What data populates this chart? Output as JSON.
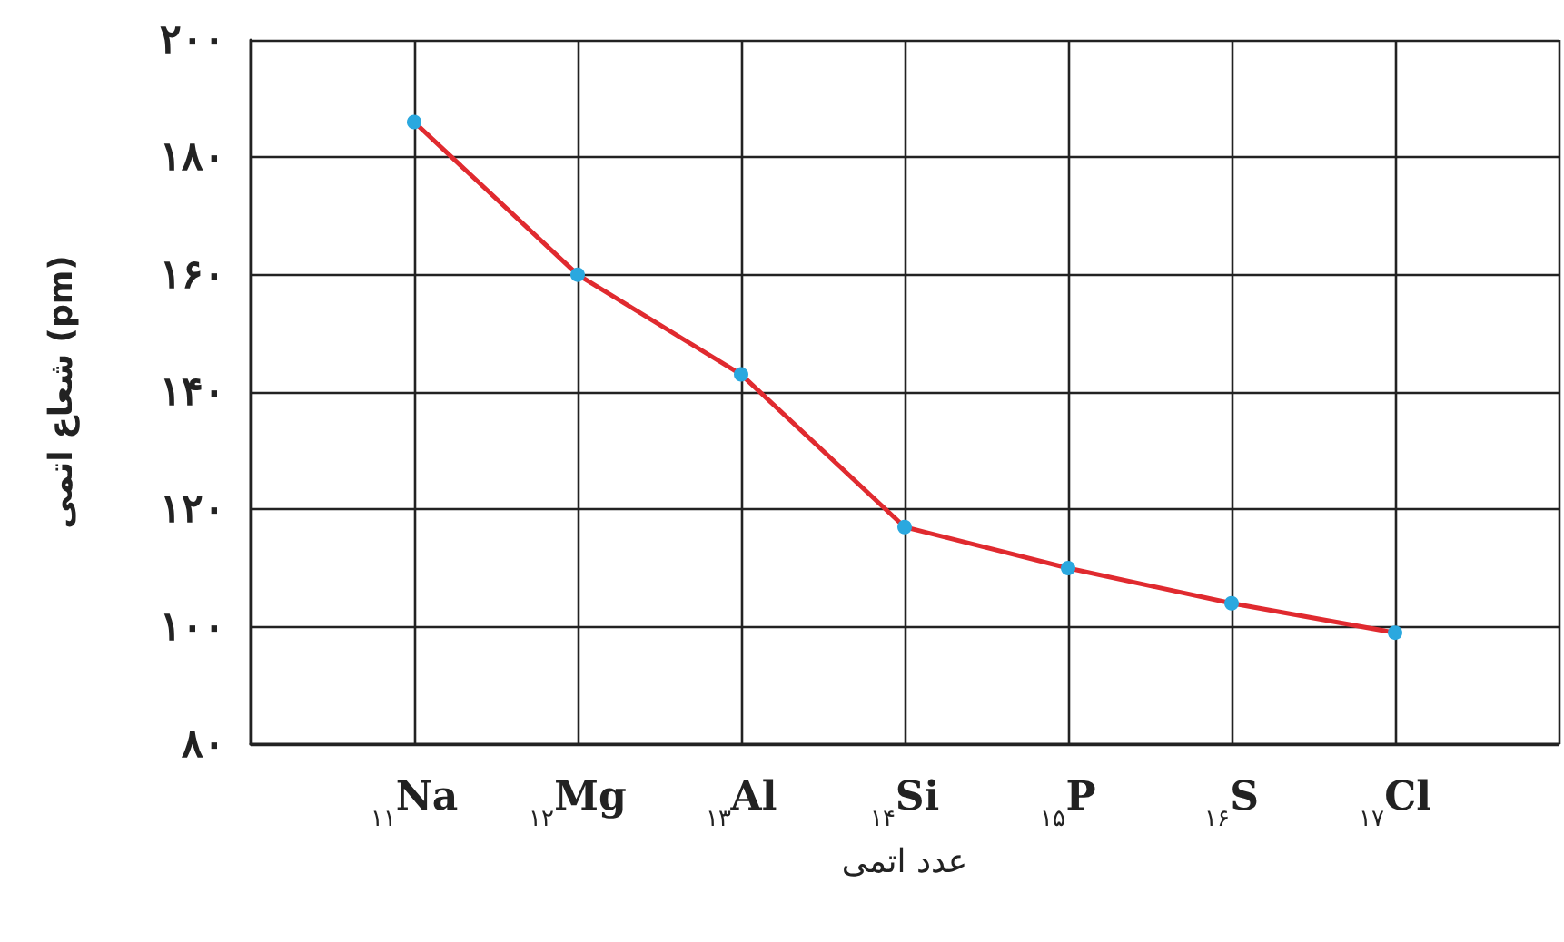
{
  "chart_data": {
    "type": "line",
    "xlabel": "عدد اتمی",
    "ylabel": "شعاع اتمی (pm)",
    "categories": [
      null,
      "$_{۱۱}$Na",
      "$_{۱۲}$Mg",
      "$_{۱۳}$Al",
      "$_{۱۴}$Si",
      "$_{۱۵}$P",
      "$_{۱۶}$S",
      "$_{۱۷}$Cl",
      null
    ],
    "series": [
      {
        "color": "#e02a2f",
        "colors": [
          null,
          "#2aa8df",
          "#2aa8df",
          "#2aa8df",
          "#2aa8df",
          "#2aa8df",
          "#2aa8df",
          "#2aa8df",
          null
        ],
        "values": [
          null,
          186,
          160,
          143,
          117,
          110,
          104,
          99,
          null
        ]
      }
    ],
    "ylim": [
      80,
      200
    ],
    "yticks": [
      {
        "value": 80,
        "label": "۸۰"
      },
      {
        "value": 100,
        "label": "۱۰۰"
      },
      {
        "value": 120,
        "label": "۱۲۰"
      },
      {
        "value": 140,
        "label": "۱۴۰"
      },
      {
        "value": 160,
        "label": "۱۶۰"
      },
      {
        "value": 180,
        "label": "۱۸۰"
      },
      {
        "value": 200,
        "label": "۲۰۰"
      }
    ],
    "grid": true,
    "marker": "circle",
    "line_style": "solid"
  }
}
